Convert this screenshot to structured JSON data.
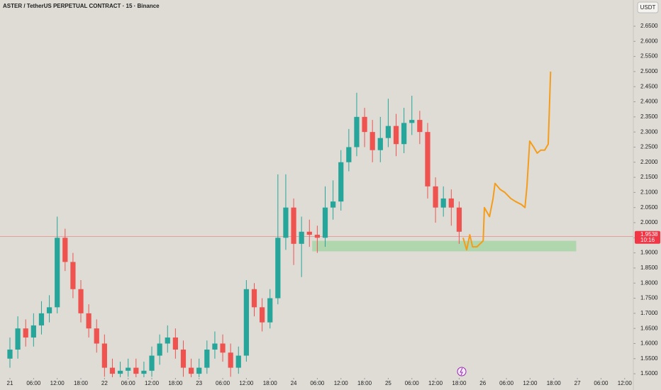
{
  "chart_data": {
    "type": "candlestick",
    "title": "ASTER / TetherUS PERPETUAL CONTRACT · 15 · Binance",
    "currency": "USDT",
    "up_color": "#26a69a",
    "down_color": "#ef5350",
    "x": [
      0,
      2,
      4,
      6,
      8,
      10,
      12,
      14,
      16,
      18,
      20,
      22,
      24,
      26,
      28,
      30,
      32,
      34,
      36,
      38,
      40,
      42,
      44,
      46,
      48,
      50,
      52,
      54,
      56,
      58,
      60,
      62,
      64,
      66,
      68,
      70,
      72,
      74,
      76,
      78,
      80,
      82,
      84,
      86,
      88,
      90,
      92,
      94,
      96,
      98,
      100,
      102,
      104,
      106,
      108,
      110,
      112,
      114
    ],
    "open": [
      1.55,
      1.58,
      1.65,
      1.62,
      1.66,
      1.7,
      1.72,
      1.95,
      1.87,
      1.78,
      1.7,
      1.65,
      1.6,
      1.52,
      1.5,
      1.51,
      1.52,
      1.5,
      1.51,
      1.56,
      1.6,
      1.62,
      1.58,
      1.52,
      1.5,
      1.52,
      1.58,
      1.6,
      1.57,
      1.52,
      1.56,
      1.78,
      1.72,
      1.67,
      1.75,
      1.95,
      2.05,
      1.93,
      1.97,
      1.96,
      1.95,
      2.05,
      2.07,
      2.2,
      2.25,
      2.35,
      2.3,
      2.24,
      2.28,
      2.32,
      2.26,
      2.33,
      2.34,
      2.3,
      2.12,
      2.05,
      2.08,
      2.05
    ],
    "high": [
      1.62,
      1.69,
      1.68,
      1.7,
      1.74,
      1.76,
      2.02,
      1.98,
      1.9,
      1.81,
      1.73,
      1.68,
      1.63,
      1.55,
      1.54,
      1.55,
      1.55,
      1.54,
      1.59,
      1.63,
      1.66,
      1.65,
      1.61,
      1.55,
      1.55,
      1.61,
      1.64,
      1.63,
      1.6,
      1.59,
      1.81,
      1.8,
      1.75,
      1.78,
      2.16,
      2.16,
      2.08,
      2.02,
      2.01,
      1.99,
      2.12,
      2.14,
      2.24,
      2.31,
      2.43,
      2.38,
      2.34,
      2.35,
      2.41,
      2.36,
      2.38,
      2.42,
      2.37,
      2.33,
      2.15,
      2.12,
      2.11,
      2.07
    ],
    "low": [
      1.52,
      1.55,
      1.59,
      1.59,
      1.63,
      1.67,
      1.7,
      1.84,
      1.75,
      1.67,
      1.62,
      1.57,
      1.49,
      1.48,
      1.48,
      1.49,
      1.48,
      1.48,
      1.49,
      1.53,
      1.57,
      1.55,
      1.49,
      1.48,
      1.48,
      1.5,
      1.55,
      1.54,
      1.49,
      1.5,
      1.54,
      1.69,
      1.64,
      1.65,
      1.73,
      1.91,
      1.86,
      1.82,
      1.92,
      1.9,
      1.92,
      2.01,
      2.04,
      2.17,
      2.22,
      2.25,
      2.2,
      2.2,
      2.25,
      2.22,
      2.23,
      2.29,
      2.26,
      2.08,
      2.0,
      2.02,
      1.99,
      1.93
    ],
    "close": [
      1.58,
      1.65,
      1.62,
      1.66,
      1.7,
      1.72,
      1.95,
      1.87,
      1.78,
      1.7,
      1.65,
      1.6,
      1.52,
      1.5,
      1.51,
      1.52,
      1.5,
      1.51,
      1.56,
      1.6,
      1.62,
      1.58,
      1.52,
      1.5,
      1.52,
      1.58,
      1.6,
      1.57,
      1.52,
      1.56,
      1.78,
      1.72,
      1.67,
      1.75,
      1.95,
      2.05,
      1.93,
      1.97,
      1.96,
      1.95,
      2.05,
      2.07,
      2.2,
      2.25,
      2.35,
      2.3,
      2.24,
      2.28,
      2.32,
      2.26,
      2.33,
      2.34,
      2.3,
      2.12,
      2.05,
      2.08,
      2.05,
      1.97
    ],
    "forecast": {
      "color": "#f59c1a",
      "x": [
        115.0,
        115.9,
        116.7,
        117.4,
        118.5,
        120.1,
        120.4,
        121.7,
        122.6,
        123.1,
        124.4,
        125.6,
        127.1,
        128.3,
        129.8,
        130.7,
        131.2,
        131.9,
        132.9,
        133.8,
        134.7,
        135.7,
        136.6,
        137.2
      ],
      "values": [
        1.95,
        1.91,
        1.96,
        1.92,
        1.92,
        1.94,
        2.05,
        2.02,
        2.08,
        2.13,
        2.11,
        2.1,
        2.08,
        2.07,
        2.06,
        2.05,
        2.12,
        2.27,
        2.25,
        2.23,
        2.24,
        2.24,
        2.26,
        2.5
      ]
    },
    "zone": {
      "color": "#a8d5a6",
      "x": [
        76.7,
        143.7
      ],
      "y": [
        1.905,
        1.94
      ]
    },
    "last_price": 1.9538,
    "countdown": "10:16",
    "last_price_color": "#f23645",
    "xlim": [
      -2.52,
      158.2
    ],
    "ylim": [
      1.4885,
      2.6852
    ],
    "xticks": [
      {
        "value": 0,
        "label": "21"
      },
      {
        "value": 6,
        "label": "06:00"
      },
      {
        "value": 12,
        "label": "12:00"
      },
      {
        "value": 18,
        "label": "18:00"
      },
      {
        "value": 24,
        "label": "22"
      },
      {
        "value": 30,
        "label": "06:00"
      },
      {
        "value": 36,
        "label": "12:00"
      },
      {
        "value": 42,
        "label": "18:00"
      },
      {
        "value": 48,
        "label": "23"
      },
      {
        "value": 54,
        "label": "06:00"
      },
      {
        "value": 60,
        "label": "12:00"
      },
      {
        "value": 66,
        "label": "18:00"
      },
      {
        "value": 72,
        "label": "24"
      },
      {
        "value": 78,
        "label": "06:00"
      },
      {
        "value": 84,
        "label": "12:00"
      },
      {
        "value": 90,
        "label": "18:00"
      },
      {
        "value": 96,
        "label": "25"
      },
      {
        "value": 102,
        "label": "06:00"
      },
      {
        "value": 108,
        "label": "12:00"
      },
      {
        "value": 114,
        "label": "18:00"
      },
      {
        "value": 120,
        "label": "26"
      },
      {
        "value": 126,
        "label": "06:00"
      },
      {
        "value": 132,
        "label": "12:00"
      },
      {
        "value": 138,
        "label": "18:00"
      },
      {
        "value": 144,
        "label": "27"
      },
      {
        "value": 150,
        "label": "06:00"
      },
      {
        "value": 156,
        "label": "12:00"
      }
    ],
    "yticks": [
      {
        "value": 1.5,
        "label": "1.5000"
      },
      {
        "value": 1.55,
        "label": "1.5500"
      },
      {
        "value": 1.6,
        "label": "1.6000"
      },
      {
        "value": 1.65,
        "label": "1.6500"
      },
      {
        "value": 1.7,
        "label": "1.7000"
      },
      {
        "value": 1.75,
        "label": "1.7500"
      },
      {
        "value": 1.8,
        "label": "1.8000"
      },
      {
        "value": 1.85,
        "label": "1.8500"
      },
      {
        "value": 1.9,
        "label": "1.9000"
      },
      {
        "value": 1.95,
        "label": "1.9500"
      },
      {
        "value": 2.0,
        "label": "2.0000"
      },
      {
        "value": 2.05,
        "label": "2.0500"
      },
      {
        "value": 2.1,
        "label": "2.1000"
      },
      {
        "value": 2.15,
        "label": "2.1500"
      },
      {
        "value": 2.2,
        "label": "2.2000"
      },
      {
        "value": 2.25,
        "label": "2.2500"
      },
      {
        "value": 2.3,
        "label": "2.3000"
      },
      {
        "value": 2.35,
        "label": "2.3500"
      },
      {
        "value": 2.4,
        "label": "2.4000"
      },
      {
        "value": 2.45,
        "label": "2.4500"
      },
      {
        "value": 2.5,
        "label": "2.5000"
      },
      {
        "value": 2.55,
        "label": "2.5500"
      },
      {
        "value": 2.6,
        "label": "2.6000"
      },
      {
        "value": 2.65,
        "label": "2.6500"
      }
    ]
  }
}
